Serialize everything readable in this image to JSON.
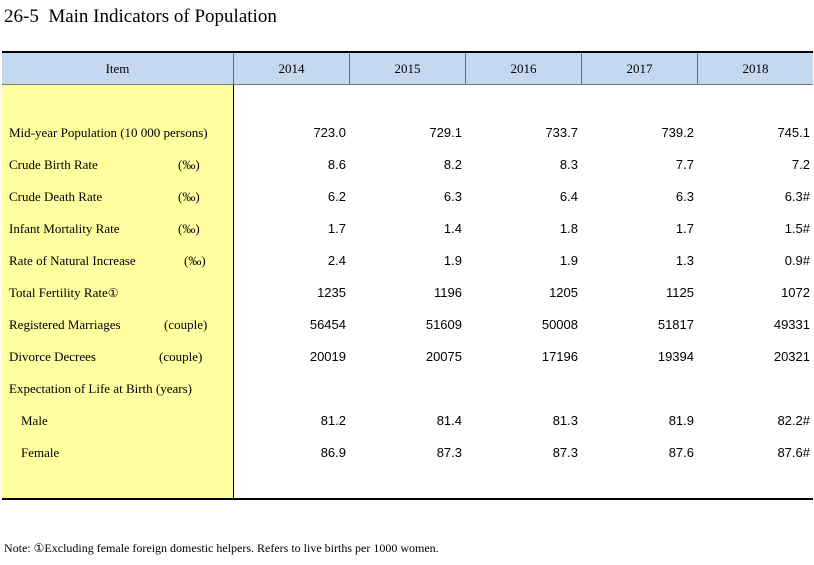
{
  "title": "26-5  Main Indicators of Population",
  "header": {
    "item": "Item",
    "years": [
      "2014",
      "2015",
      "2016",
      "2017",
      "2018"
    ]
  },
  "rows": [
    {
      "label": "Mid-year Population (10 000 persons)",
      "unit": "",
      "values": [
        "723.0",
        "729.1",
        "733.7",
        "739.2",
        "745.1"
      ]
    },
    {
      "label": "Crude Birth Rate",
      "unit": "(‰)",
      "values": [
        "8.6",
        "8.2",
        "8.3",
        "7.7",
        "7.2"
      ]
    },
    {
      "label": "Crude Death Rate",
      "unit": "(‰)",
      "values": [
        "6.2",
        "6.3",
        "6.4",
        "6.3",
        "6.3#"
      ]
    },
    {
      "label": "Infant Mortality Rate",
      "unit": "(‰)",
      "values": [
        "1.7",
        "1.4",
        "1.8",
        "1.7",
        "1.5#"
      ]
    },
    {
      "label": "Rate of Natural Increase",
      "unit": "(‰)",
      "values": [
        "2.4",
        "1.9",
        "1.9",
        "1.3",
        "0.9#"
      ]
    },
    {
      "label": "Total Fertility Rate",
      "marker": "①",
      "unit": "",
      "values": [
        "1235",
        "1196",
        "1205",
        "1125",
        "1072"
      ]
    },
    {
      "label": "Registered Marriages",
      "unit": "(couple)",
      "values": [
        "56454",
        "51609",
        "50008",
        "51817",
        "49331"
      ]
    },
    {
      "label": "Divorce Decrees",
      "unit": "(couple)",
      "values": [
        "20019",
        "20075",
        "17196",
        "19394",
        "20321"
      ]
    },
    {
      "label": "Expectation of Life at Birth (years)",
      "unit": "",
      "values": [
        "",
        "",
        "",
        "",
        ""
      ]
    },
    {
      "label": "Male",
      "unit": "",
      "values": [
        "81.2",
        "81.4",
        "81.3",
        "81.9",
        "82.2#"
      ]
    },
    {
      "label": "Female",
      "unit": "",
      "values": [
        "86.9",
        "87.3",
        "87.3",
        "87.6",
        "87.6#"
      ]
    }
  ],
  "note": "Note:  ①Excluding female foreign domestic helpers. Refers to live births per 1000 women.",
  "colors": {
    "header_bg": "#c4d9ef",
    "label_col_bg": "#ffffa0"
  }
}
